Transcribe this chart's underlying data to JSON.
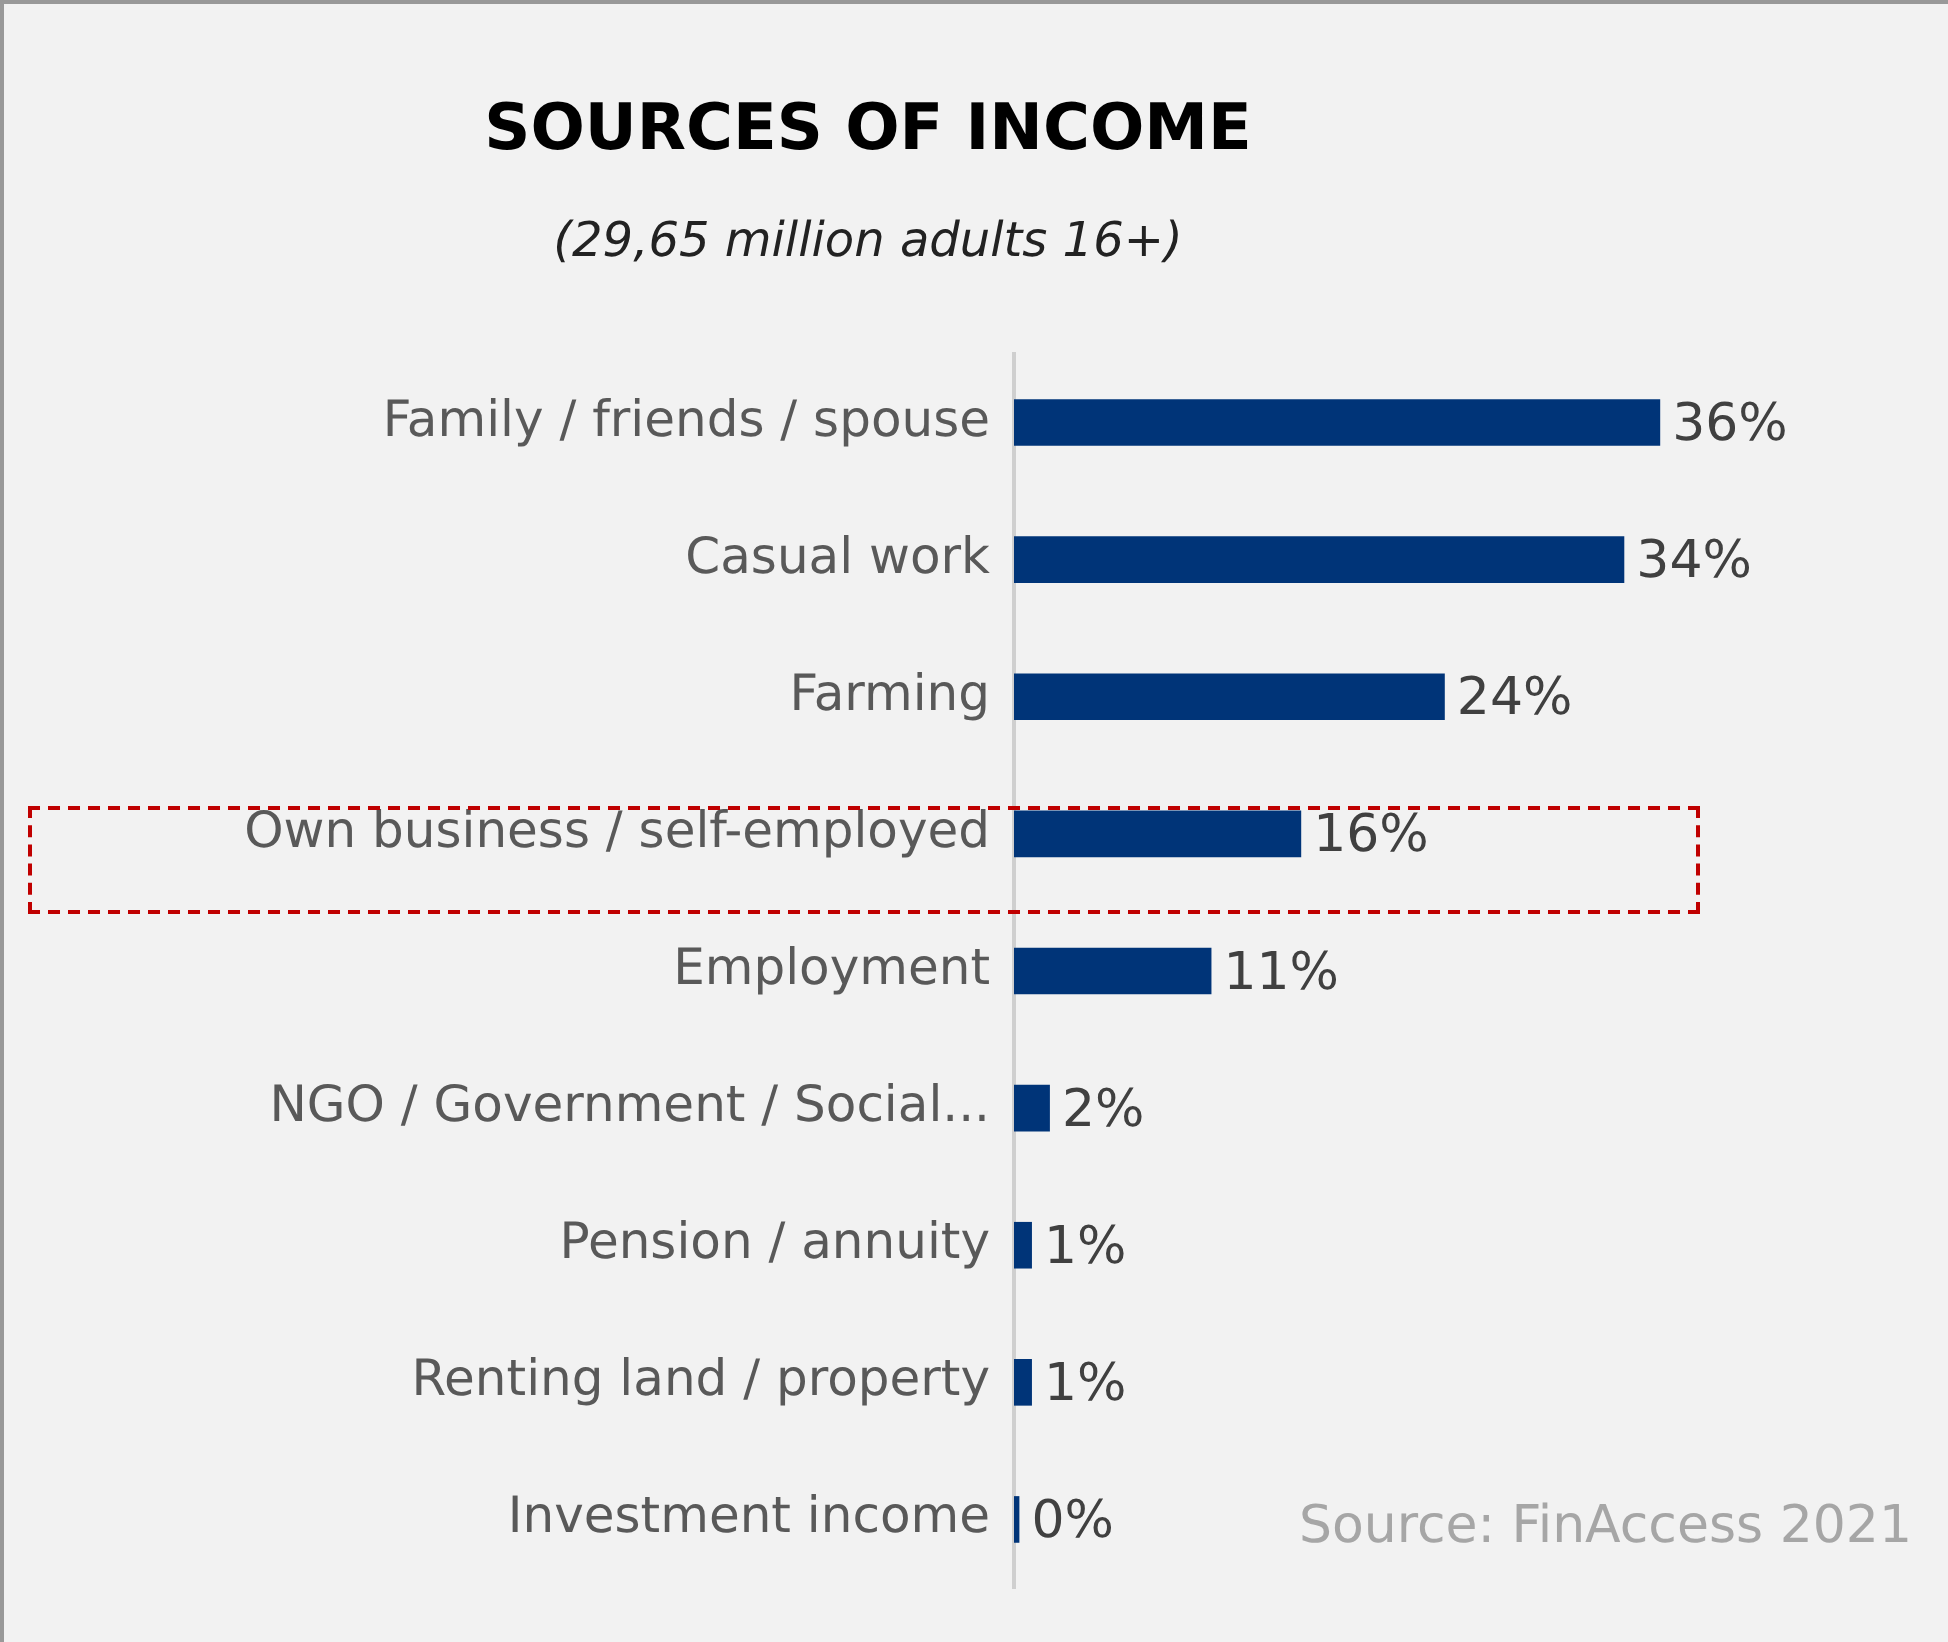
{
  "chart_data": {
    "type": "bar",
    "orientation": "horizontal",
    "title": "SOURCES OF INCOME",
    "subtitle": "(29,65 million adults 16+)",
    "categories": [
      "Family / friends / spouse",
      "Casual work",
      "Farming",
      "Own business / self-employed",
      "Employment",
      "NGO / Government / Social...",
      "Pension / annuity",
      "Renting land / property",
      "Investment income"
    ],
    "values": [
      36,
      34,
      24,
      16,
      11,
      2,
      1,
      1,
      0.3
    ],
    "value_labels": [
      "36%",
      "34%",
      "24%",
      "16%",
      "11%",
      "2%",
      "1%",
      "1%",
      "0%"
    ],
    "color": "#003478",
    "legend": false,
    "annotations": [
      "Source: FinAccess 2021"
    ]
  }
}
